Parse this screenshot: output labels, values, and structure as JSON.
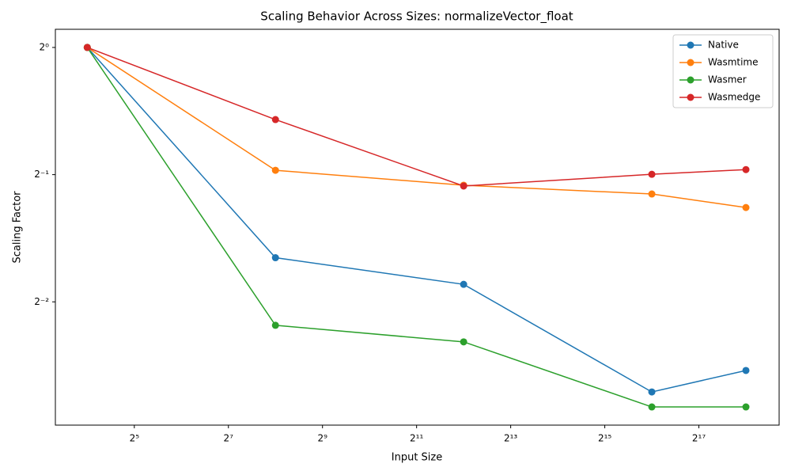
{
  "chart_data": {
    "type": "line",
    "title": "Scaling Behavior Across Sizes: normalizeVector_float",
    "x_label": "Input Size",
    "y_label": "Scaling Factor",
    "x_scale": "log2",
    "y_scale": "log2",
    "x": [
      16,
      256,
      4096,
      65536,
      262144
    ],
    "series": [
      {
        "name": "Native",
        "color": "#1f77b4",
        "values": [
          1,
          0.318,
          0.275,
          0.153,
          0.172
        ]
      },
      {
        "name": "Wasmtime",
        "color": "#ff7f0e",
        "values": [
          1,
          0.512,
          0.472,
          0.45,
          0.418
        ]
      },
      {
        "name": "Wasmer",
        "color": "#2ca02c",
        "values": [
          1,
          0.22,
          0.201,
          0.141,
          0.141
        ]
      },
      {
        "name": "Wasmedge",
        "color": "#d62728",
        "values": [
          1,
          0.675,
          0.47,
          0.501,
          0.514
        ]
      }
    ],
    "xlim": [
      10,
      427600
    ],
    "ylim": [
      0.1277,
      1.104
    ],
    "xticks": [
      {
        "value": 32,
        "label": "2⁵"
      },
      {
        "value": 128,
        "label": "2⁷"
      },
      {
        "value": 512,
        "label": "2⁹"
      },
      {
        "value": 2048,
        "label": "2¹¹"
      },
      {
        "value": 8192,
        "label": "2¹³"
      },
      {
        "value": 32768,
        "label": "2¹⁵"
      },
      {
        "value": 131072,
        "label": "2¹⁷"
      }
    ],
    "yticks": [
      {
        "value": 1,
        "label": "2⁰"
      },
      {
        "value": 0.5,
        "label": "2⁻¹"
      },
      {
        "value": 0.25,
        "label": "2⁻²"
      }
    ],
    "grid": false,
    "legend": "upper right",
    "marker": "circle"
  }
}
